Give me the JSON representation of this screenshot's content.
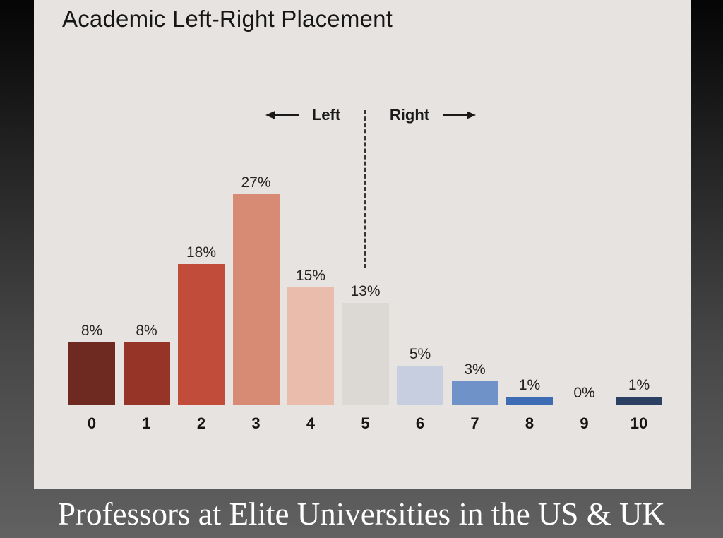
{
  "title": "Academic Left-Right Placement",
  "caption": "Professors at Elite Universities in the US & UK",
  "annotations": {
    "left_label": "Left",
    "right_label": "Right",
    "left_arrow_icon": "left-arrow",
    "right_arrow_icon": "right-arrow"
  },
  "chart_data": {
    "type": "bar",
    "title": "Academic Left-Right Placement",
    "categories": [
      "0",
      "1",
      "2",
      "3",
      "4",
      "5",
      "6",
      "7",
      "8",
      "9",
      "10"
    ],
    "values": [
      8,
      8,
      18,
      27,
      15,
      13,
      5,
      3,
      1,
      0,
      1
    ],
    "value_labels": [
      "8%",
      "8%",
      "18%",
      "27%",
      "15%",
      "13%",
      "5%",
      "3%",
      "1%",
      "0%",
      "1%"
    ],
    "unit": "%",
    "bar_colors": [
      "#6e2a20",
      "#963428",
      "#c04c39",
      "#d78b75",
      "#e9bcab",
      "#dcd8d3",
      "#c7cedf",
      "#6f93c8",
      "#3d6cb4",
      null,
      "#2b4062"
    ],
    "divider_at_category": "5",
    "y_axis_shown": false,
    "gridlines": false,
    "legend": "none",
    "ylim": [
      0,
      30
    ]
  },
  "colors": {
    "panel_bg": "#e7e3e0",
    "background_top": "#050505",
    "background_bottom": "#616161",
    "chart_text": "#1a1a1a",
    "dashed_line": "#353535",
    "caption_text": "#ffffff"
  }
}
